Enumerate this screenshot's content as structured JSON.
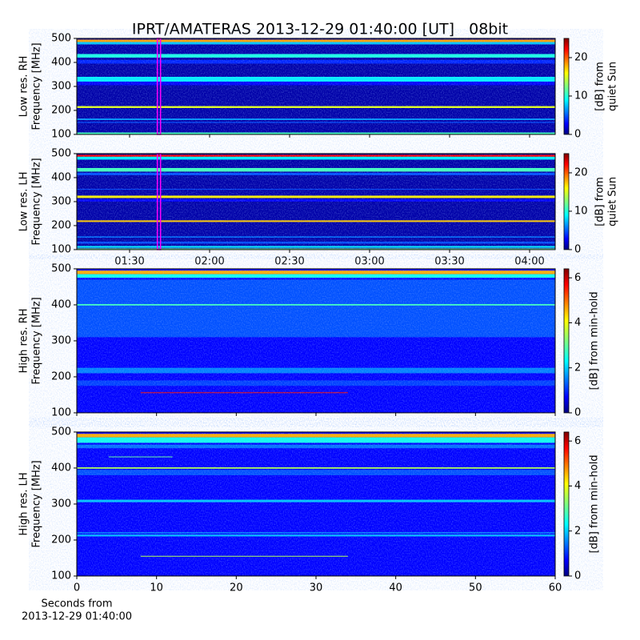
{
  "title": "IPRT/AMATERAS 2013-12-29 01:40:00 [UT]   08bit",
  "chart_data": [
    {
      "type": "spectrogram",
      "ylabel": [
        "Low res. RH",
        "Frequency [MHz]"
      ],
      "cbar_label": [
        "[dB] from",
        "quiet Sun"
      ],
      "ylim": [
        100,
        500
      ],
      "yticks": [
        100,
        200,
        300,
        400,
        500
      ],
      "xlim": [
        70.2,
        249.6
      ],
      "xticks": [
        {
          "value": 90,
          "label": "01:30"
        },
        {
          "value": 120,
          "label": "02:00"
        },
        {
          "value": 150,
          "label": "02:30"
        },
        {
          "value": 180,
          "label": "03:00"
        },
        {
          "value": 210,
          "label": "03:30"
        },
        {
          "value": 240,
          "label": "04:00"
        }
      ],
      "xtick_labels": false,
      "clim": [
        0,
        25
      ],
      "cticks": [
        0,
        10,
        20
      ],
      "background": 1,
      "marker_x": 101,
      "marker_color": "#ff00ff",
      "bands": [
        {
          "from": 485,
          "to": 495,
          "level": 18
        },
        {
          "from": 475,
          "to": 485,
          "level": 8
        },
        {
          "from": 420,
          "to": 435,
          "level": 10
        },
        {
          "from": 395,
          "to": 410,
          "level": 4
        },
        {
          "from": 320,
          "to": 340,
          "level": 9
        },
        {
          "from": 305,
          "to": 320,
          "level": 3
        },
        {
          "from": 210,
          "to": 218,
          "level": 15
        },
        {
          "from": 160,
          "to": 166,
          "level": 7
        },
        {
          "from": 148,
          "to": 152,
          "level": 5
        },
        {
          "from": 100,
          "to": 108,
          "level": 11
        }
      ]
    },
    {
      "type": "spectrogram",
      "ylabel": [
        "Low res. LH",
        "Frequency [MHz]"
      ],
      "cbar_label": [
        "[dB] from",
        "quiet Sun"
      ],
      "ylim": [
        100,
        500
      ],
      "yticks": [
        100,
        200,
        300,
        400,
        500
      ],
      "xlim": [
        70.2,
        249.6
      ],
      "xticks": [
        {
          "value": 90,
          "label": "01:30"
        },
        {
          "value": 120,
          "label": "02:00"
        },
        {
          "value": 150,
          "label": "02:30"
        },
        {
          "value": 180,
          "label": "03:00"
        },
        {
          "value": 210,
          "label": "03:30"
        },
        {
          "value": 240,
          "label": "04:00"
        }
      ],
      "xtick_labels": true,
      "clim": [
        0,
        25
      ],
      "cticks": [
        0,
        10,
        20
      ],
      "background": 1,
      "marker_x": 101,
      "marker_color": "#ff00ff",
      "bands": [
        {
          "from": 487,
          "to": 495,
          "level": 22
        },
        {
          "from": 475,
          "to": 487,
          "level": 9
        },
        {
          "from": 425,
          "to": 440,
          "level": 11
        },
        {
          "from": 410,
          "to": 420,
          "level": 5
        },
        {
          "from": 350,
          "to": 353,
          "level": 5
        },
        {
          "from": 315,
          "to": 325,
          "level": 16
        },
        {
          "from": 300,
          "to": 310,
          "level": 3
        },
        {
          "from": 215,
          "to": 222,
          "level": 17
        },
        {
          "from": 150,
          "to": 155,
          "level": 6
        },
        {
          "from": 125,
          "to": 133,
          "level": 5
        },
        {
          "from": 108,
          "to": 115,
          "level": 9
        },
        {
          "from": 100,
          "to": 105,
          "level": 12
        }
      ]
    },
    {
      "type": "spectrogram",
      "ylabel": [
        "High res. RH",
        "Frequency [MHz]"
      ],
      "cbar_label": [
        "[dB] from min-hold"
      ],
      "ylim": [
        100,
        500
      ],
      "yticks": [
        100,
        200,
        300,
        400,
        500
      ],
      "xlim": [
        0,
        60
      ],
      "xticks": [
        0,
        10,
        20,
        30,
        40,
        50,
        60
      ],
      "xtick_labels": false,
      "clim": [
        0,
        6.4
      ],
      "cticks": [
        0,
        2,
        4,
        6
      ],
      "background": 0.8,
      "bands": [
        {
          "from": 310,
          "to": 470,
          "level": 1.3
        },
        {
          "from": 485,
          "to": 495,
          "level": 4.5
        },
        {
          "from": 475,
          "to": 485,
          "level": 2.5
        },
        {
          "from": 398,
          "to": 402,
          "level": 2.8
        },
        {
          "from": 210,
          "to": 225,
          "level": 1.6
        },
        {
          "from": 175,
          "to": 190,
          "level": 1.2
        },
        {
          "from": 155,
          "to": 157,
          "level": 5.5,
          "start": 8,
          "end": 34
        }
      ]
    },
    {
      "type": "spectrogram",
      "ylabel": [
        "High res. LH",
        "Frequency [MHz]"
      ],
      "cbar_label": [
        "[dB] from min-hold"
      ],
      "ylim": [
        100,
        500
      ],
      "yticks": [
        100,
        200,
        300,
        400,
        500
      ],
      "xlim": [
        0,
        60
      ],
      "xticks": [
        0,
        10,
        20,
        30,
        40,
        50,
        60
      ],
      "xtick_labels": true,
      "xlabel": [
        "Seconds from",
        "2013-12-29 01:40:00"
      ],
      "clim": [
        0,
        6.4
      ],
      "cticks": [
        0,
        2,
        4,
        6
      ],
      "background": 0.8,
      "bands": [
        {
          "from": 485,
          "to": 495,
          "level": 4.5
        },
        {
          "from": 470,
          "to": 485,
          "level": 2.5
        },
        {
          "from": 455,
          "to": 465,
          "level": 1.5
        },
        {
          "from": 398,
          "to": 402,
          "level": 3.5
        },
        {
          "from": 380,
          "to": 395,
          "level": 1.3
        },
        {
          "from": 305,
          "to": 312,
          "level": 2
        },
        {
          "from": 210,
          "to": 215,
          "level": 2
        },
        {
          "from": 218,
          "to": 222,
          "level": 1.5
        },
        {
          "from": 155,
          "to": 156,
          "level": 3.5,
          "start": 8,
          "end": 34
        },
        {
          "from": 430,
          "to": 432,
          "level": 3,
          "start": 4,
          "end": 12
        }
      ]
    }
  ]
}
